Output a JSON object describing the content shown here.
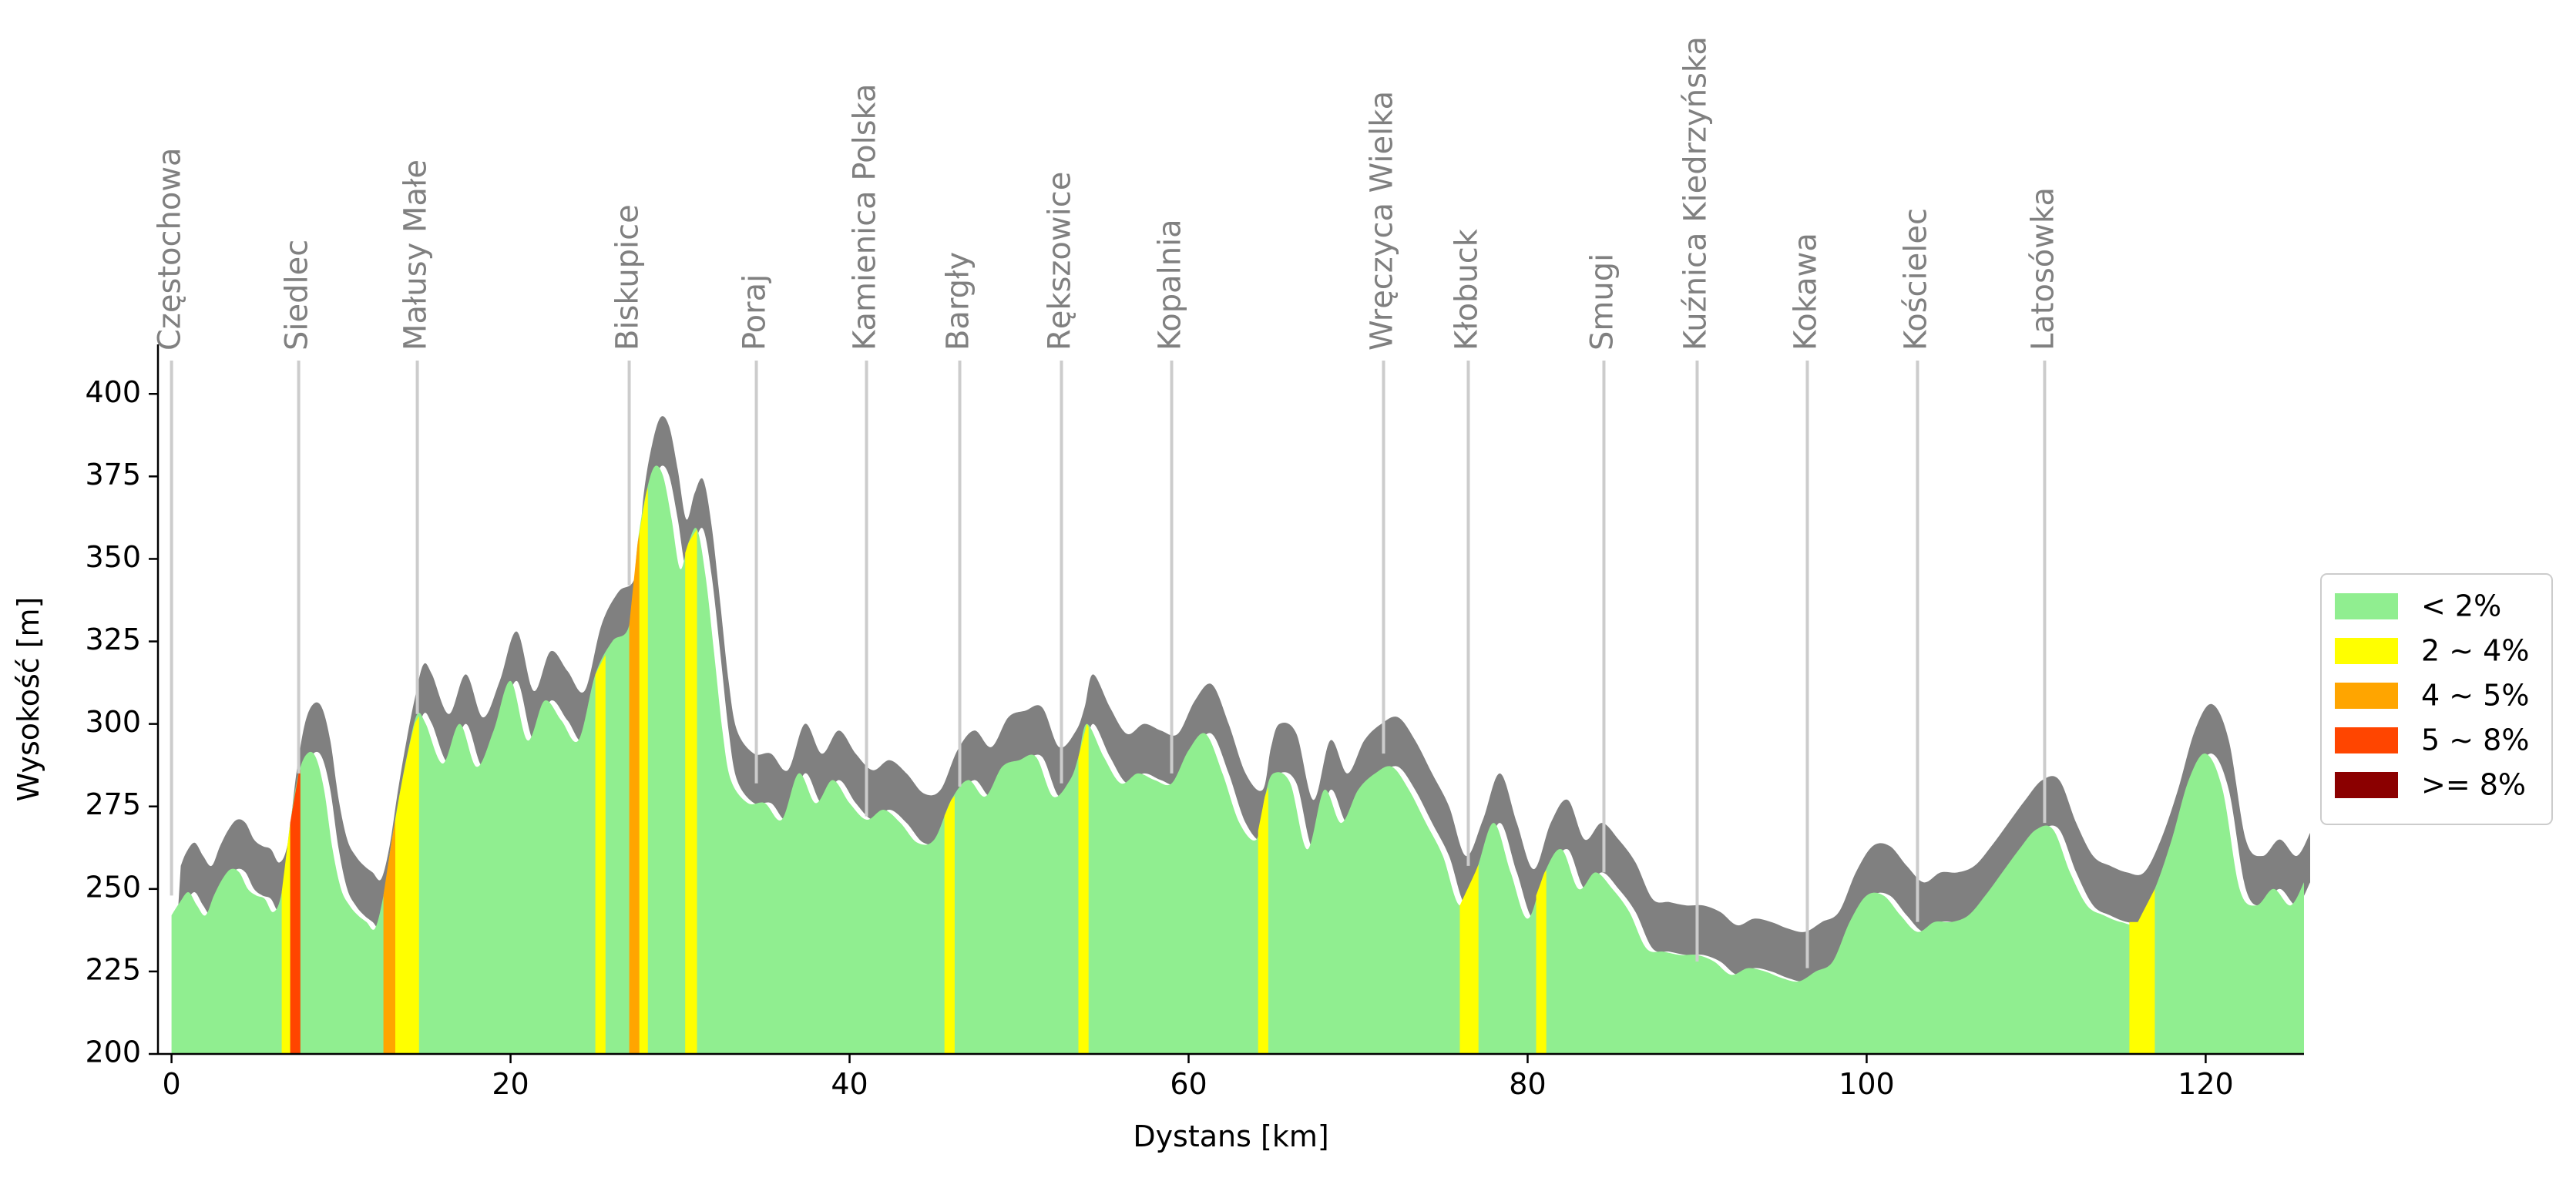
{
  "chart_data": {
    "type": "area",
    "title": "",
    "xlabel": "Dystans [km]",
    "ylabel": "Wysokość [m]",
    "xlim": [
      -0.8,
      125.8
    ],
    "ylim": [
      200,
      415
    ],
    "x_ticks": [
      0,
      20,
      40,
      60,
      80,
      100,
      120
    ],
    "y_ticks": [
      200,
      225,
      250,
      275,
      300,
      325,
      350,
      375,
      400
    ],
    "grid": false,
    "legend_position": "right",
    "legend": [
      {
        "label": "< 2%",
        "color": "#90ee90"
      },
      {
        "label": "2 ~ 4%",
        "color": "#ffff00"
      },
      {
        "label": "4 ~ 5%",
        "color": "#ffa500"
      },
      {
        "label": "5 ~ 8%",
        "color": "#ff4500"
      },
      {
        "label": ">= 8%",
        "color": "#8b0000"
      }
    ],
    "colors": {
      "shadow": "#808080",
      "profile": "#90ee90",
      "waypoint_line": "#cccccc",
      "waypoint_text": "#808080"
    },
    "profile": {
      "x": [
        0,
        0.5,
        1,
        1.5,
        2,
        2.5,
        3,
        3.5,
        4,
        4.5,
        5,
        5.5,
        6,
        6.5,
        7,
        7.5,
        8,
        8.5,
        9,
        9.5,
        10,
        10.5,
        11,
        11.5,
        12,
        12.5,
        13,
        13.5,
        14,
        14.5,
        15,
        16,
        17,
        18,
        19,
        20,
        21,
        22,
        23,
        24,
        25,
        26,
        27,
        27.5,
        28,
        28.5,
        29,
        29.5,
        30,
        30.5,
        31,
        31.5,
        32,
        32.5,
        33,
        34,
        35,
        36,
        37,
        38,
        39,
        40,
        41,
        42,
        43,
        44,
        45,
        46,
        47,
        48,
        49,
        50,
        51,
        52,
        53,
        53.5,
        54,
        55,
        56,
        57,
        58,
        59,
        60,
        61,
        62,
        63,
        64,
        64.5,
        65,
        66,
        67,
        68,
        69,
        70,
        71,
        72,
        73,
        74,
        75,
        76,
        77,
        78,
        79,
        80,
        81,
        82,
        83,
        84,
        85,
        86,
        87,
        88,
        89,
        90,
        91,
        92,
        93,
        94,
        95,
        96,
        97,
        98,
        99,
        100,
        101,
        102,
        103,
        104,
        105,
        106,
        107,
        108,
        109,
        110,
        111,
        112,
        113,
        114,
        115,
        116,
        117,
        118,
        119,
        120,
        121,
        122,
        123,
        124,
        125,
        125.8
      ],
      "elevation": [
        242,
        246,
        249,
        245,
        242,
        248,
        253,
        256,
        255,
        250,
        248,
        247,
        243,
        249,
        270,
        285,
        291,
        290,
        280,
        262,
        250,
        245,
        242,
        240,
        238,
        248,
        265,
        280,
        293,
        303,
        300,
        288,
        300,
        287,
        298,
        313,
        295,
        307,
        301,
        295,
        315,
        325,
        330,
        355,
        370,
        378,
        375,
        362,
        347,
        355,
        359,
        345,
        322,
        298,
        283,
        276,
        276,
        271,
        285,
        276,
        283,
        276,
        271,
        274,
        270,
        264,
        265,
        277,
        283,
        278,
        287,
        289,
        290,
        278,
        283,
        290,
        300,
        290,
        282,
        285,
        283,
        282,
        292,
        297,
        285,
        270,
        265,
        278,
        285,
        282,
        262,
        280,
        270,
        280,
        285,
        287,
        280,
        270,
        260,
        245,
        256,
        270,
        255,
        241,
        255,
        262,
        250,
        255,
        250,
        243,
        232,
        231,
        230,
        230,
        228,
        224,
        226,
        225,
        223,
        222,
        225,
        228,
        240,
        248,
        248,
        242,
        237,
        240,
        240,
        242,
        248,
        255,
        262,
        268,
        268,
        255,
        245,
        242,
        240,
        240,
        250,
        265,
        283,
        291,
        280,
        250,
        245,
        250,
        245,
        252,
        248,
        242,
        242
      ],
      "shadow_offset": 15
    },
    "grade_bands": [
      {
        "x": [
          6.5,
          7
        ],
        "grade": "2 ~ 4%"
      },
      {
        "x": [
          7,
          7.6
        ],
        "grade": "5 ~ 8%"
      },
      {
        "x": [
          12.5,
          13.2
        ],
        "grade": "4 ~ 5%"
      },
      {
        "x": [
          13.2,
          14.6
        ],
        "grade": "2 ~ 4%"
      },
      {
        "x": [
          25,
          25.6
        ],
        "grade": "2 ~ 4%"
      },
      {
        "x": [
          27,
          27.6
        ],
        "grade": "4 ~ 5%"
      },
      {
        "x": [
          27.6,
          28.1
        ],
        "grade": "2 ~ 4%"
      },
      {
        "x": [
          30.3,
          31
        ],
        "grade": "2 ~ 4%"
      },
      {
        "x": [
          45.6,
          46.2
        ],
        "grade": "2 ~ 4%"
      },
      {
        "x": [
          53.5,
          54.1
        ],
        "grade": "2 ~ 4%"
      },
      {
        "x": [
          64.1,
          64.7
        ],
        "grade": "2 ~ 4%"
      },
      {
        "x": [
          76,
          77.1
        ],
        "grade": "2 ~ 4%"
      },
      {
        "x": [
          80.5,
          81.1
        ],
        "grade": "2 ~ 4%"
      },
      {
        "x": [
          115.5,
          117
        ],
        "grade": "2 ~ 4%"
      }
    ],
    "waypoints": [
      {
        "name": "Częstochowa",
        "x": 0,
        "line_end": 248
      },
      {
        "name": "Siedlec",
        "x": 7.5,
        "line_end": 285
      },
      {
        "name": "Małusy Małe",
        "x": 14.5,
        "line_end": 303
      },
      {
        "name": "Biskupice",
        "x": 27,
        "line_end": 342
      },
      {
        "name": "Poraj",
        "x": 34.5,
        "line_end": 282
      },
      {
        "name": "Kamienica Polska",
        "x": 41,
        "line_end": 272
      },
      {
        "name": "Bargły",
        "x": 46.5,
        "line_end": 281
      },
      {
        "name": "Rększowice",
        "x": 52.5,
        "line_end": 282
      },
      {
        "name": "Kopalnia",
        "x": 59,
        "line_end": 285
      },
      {
        "name": "Wręczyca Wielka",
        "x": 71.5,
        "line_end": 291
      },
      {
        "name": "Kłobuck",
        "x": 76.5,
        "line_end": 257
      },
      {
        "name": "Smugi",
        "x": 84.5,
        "line_end": 255
      },
      {
        "name": "Kuźnica Kiedrzyńska",
        "x": 90,
        "line_end": 228
      },
      {
        "name": "Kokawa",
        "x": 96.5,
        "line_end": 226
      },
      {
        "name": "Kościelec",
        "x": 103,
        "line_end": 240
      },
      {
        "name": "Latosówka",
        "x": 110.5,
        "line_end": 270
      }
    ]
  }
}
